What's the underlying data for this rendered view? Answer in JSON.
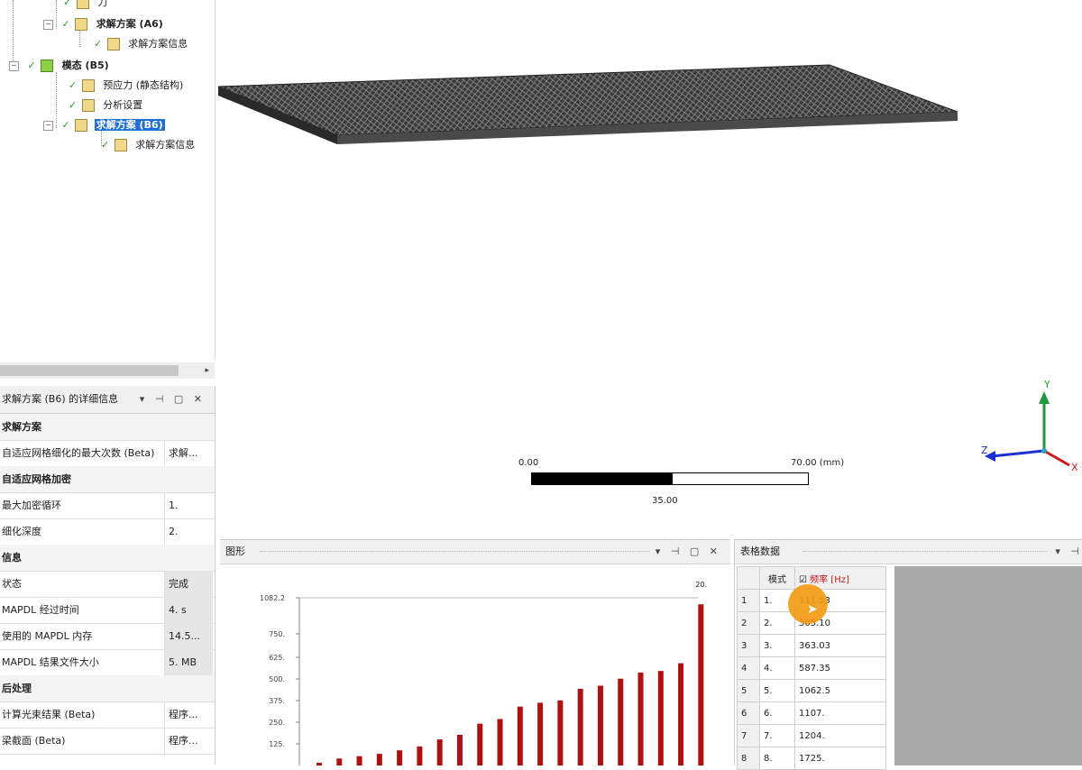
{
  "tree": {
    "nodes": [
      {
        "label": "力",
        "icon": "force-icon"
      },
      {
        "label": "求解方案 (A6)",
        "icon": "solution-icon"
      },
      {
        "label": "求解方案信息",
        "icon": "solution-info-icon"
      },
      {
        "label": "模态 (B5)",
        "icon": "modal-icon"
      },
      {
        "label": "预应力 (静态结构)",
        "icon": "prestress-icon"
      },
      {
        "label": "分析设置",
        "icon": "analysis-settings-icon"
      },
      {
        "label": "求解方案 (B6)",
        "icon": "solution-icon"
      },
      {
        "label": "求解方案信息",
        "icon": "solution-info-icon"
      }
    ]
  },
  "details": {
    "header": "求解方案 (B6) 的详细信息",
    "rows": [
      {
        "key": "求解方案",
        "value": "",
        "group": true
      },
      {
        "key": "自适应网格细化的最大次数 (Beta)",
        "value": "求解..."
      },
      {
        "key": "自适应网格加密",
        "value": "",
        "group": true
      },
      {
        "key": "最大加密循环",
        "value": "1."
      },
      {
        "key": "细化深度",
        "value": "2."
      },
      {
        "key": "信息",
        "value": "",
        "group": true
      },
      {
        "key": "状态",
        "value": "完成"
      },
      {
        "key": "MAPDL 经过时间",
        "value": "4. s"
      },
      {
        "key": "使用的 MAPDL 内存",
        "value": "14.5..."
      },
      {
        "key": "MAPDL 结果文件大小",
        "value": "5. MB"
      },
      {
        "key": "后处理",
        "value": "",
        "group": true
      },
      {
        "key": "计算光束结果 (Beta)",
        "value": "程序..."
      },
      {
        "key": "梁截面 (Beta)",
        "value": "程序..."
      }
    ]
  },
  "viewport": {
    "scale_left": "0.00",
    "scale_right": "70.00 (mm)",
    "scale_mid": "35.00",
    "axis_labels": {
      "y": "Y",
      "z": "Z",
      "x": "X"
    }
  },
  "chart_panel": {
    "title": "图形",
    "chart_data": {
      "type": "bar",
      "title": "",
      "top_bar_label": "20.",
      "y_ticks": [
        "1082.2",
        "750.",
        "625.",
        "500.",
        "375.",
        "250.",
        "125."
      ],
      "ylim": [
        0,
        1082.2
      ],
      "values": [
        18,
        45,
        60,
        75,
        98,
        123,
        168,
        198,
        270,
        300,
        380,
        405,
        420,
        495,
        515,
        560,
        600,
        610,
        660,
        1040
      ]
    }
  },
  "data_panel": {
    "title": "表格数据",
    "columns": [
      "模式",
      "频率 [Hz]"
    ],
    "rows": [
      {
        "n": "1",
        "mode": "1.",
        "freq": "111.53"
      },
      {
        "n": "2",
        "mode": "2.",
        "freq": "305.10"
      },
      {
        "n": "3",
        "mode": "3.",
        "freq": "363.03"
      },
      {
        "n": "4",
        "mode": "4.",
        "freq": "587.35"
      },
      {
        "n": "5",
        "mode": "5.",
        "freq": "1062.5"
      },
      {
        "n": "6",
        "mode": "6.",
        "freq": "1107."
      },
      {
        "n": "7",
        "mode": "7.",
        "freq": "1204."
      },
      {
        "n": "8",
        "mode": "8.",
        "freq": "1725."
      }
    ]
  },
  "colors": {
    "accent": "#1f6fd6",
    "bar": "#b01010",
    "cursor": "#f29a0e"
  }
}
